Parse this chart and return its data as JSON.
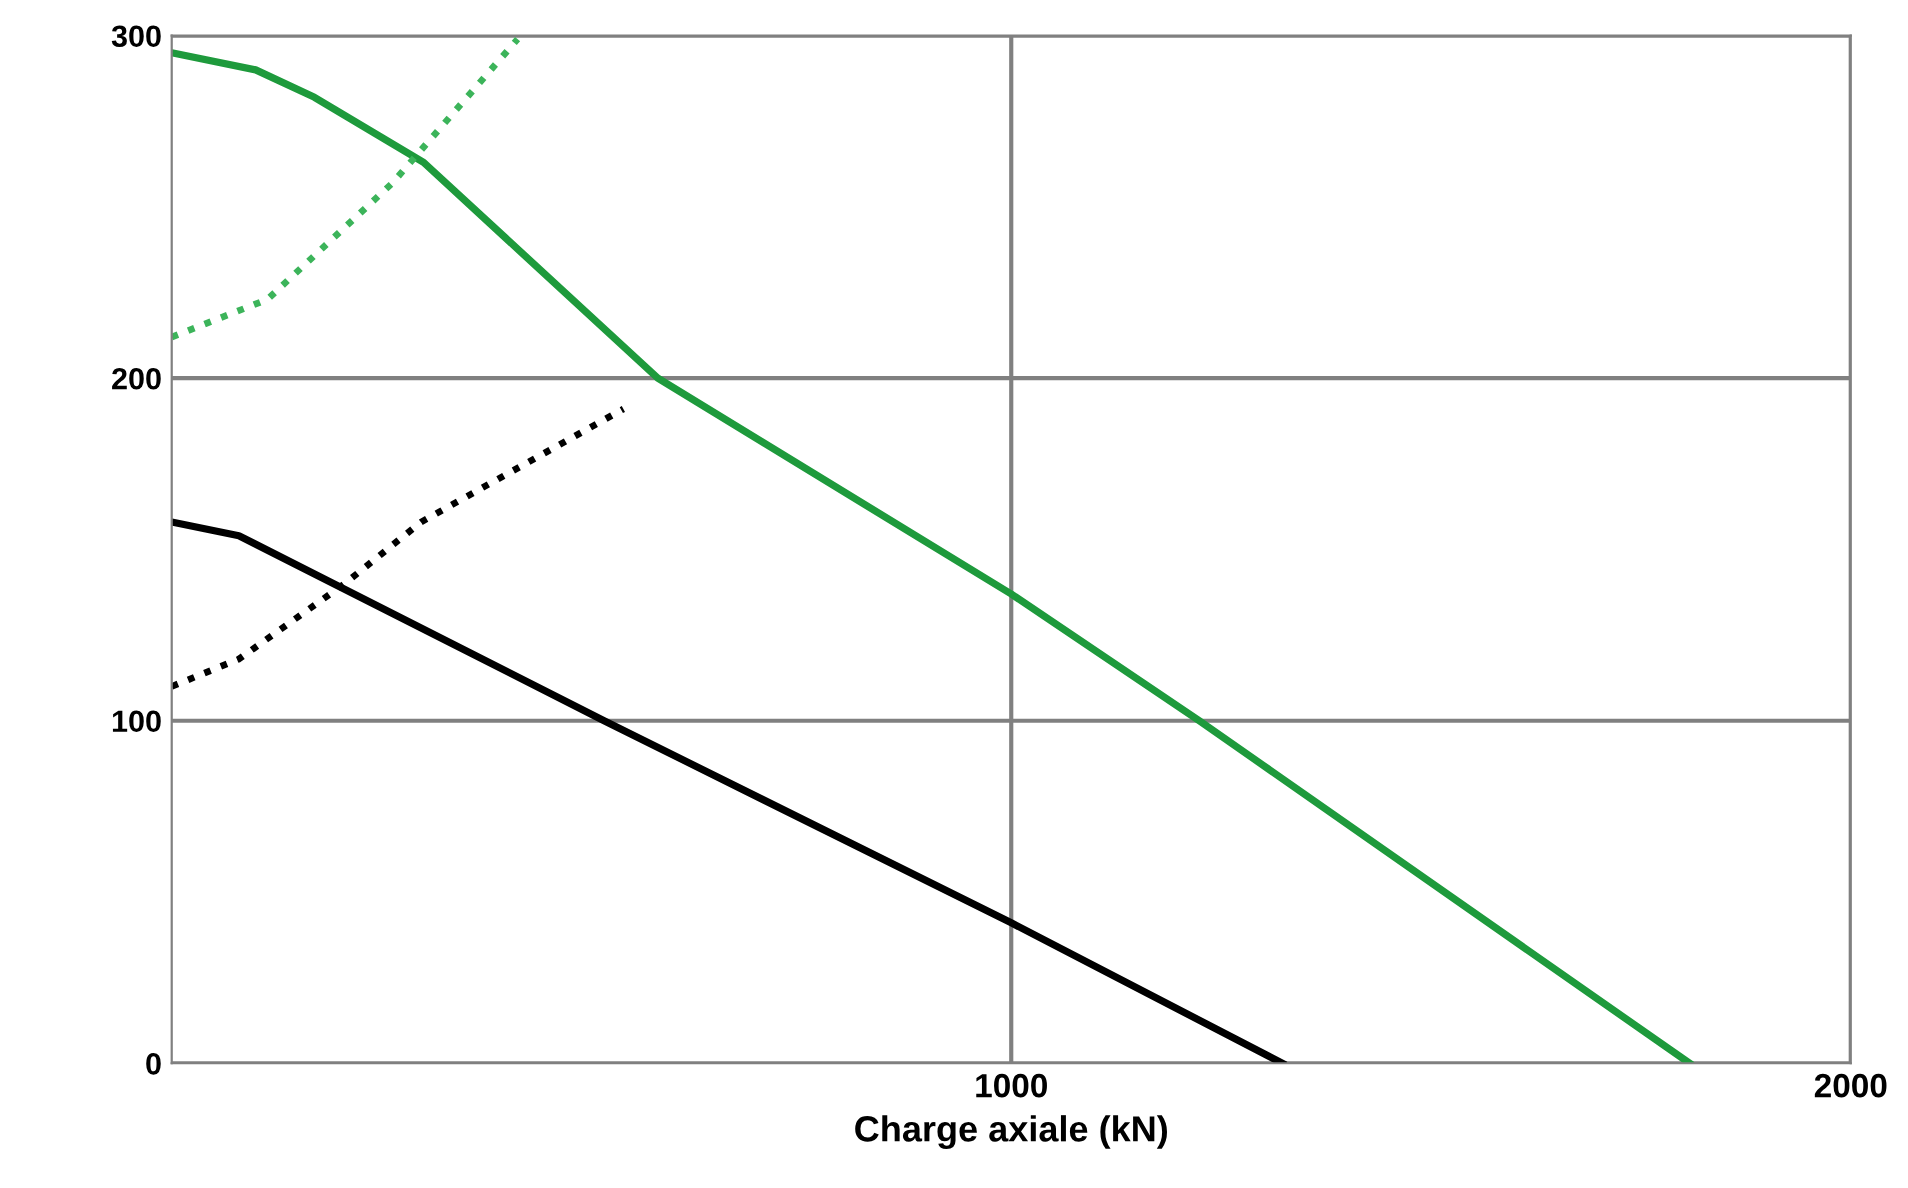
{
  "chart_data": {
    "type": "line",
    "xlabel": "Charge axiale (kN)",
    "xlim": [
      0,
      2000
    ],
    "ylim": [
      0,
      300
    ],
    "xticks": [
      1000,
      2000
    ],
    "yticks": [
      0,
      100,
      200,
      300
    ],
    "grid": true,
    "legend": false,
    "marker": "none",
    "series": [
      {
        "color": "#1e9a3c",
        "line_style": "solid",
        "x": [
          0,
          100,
          170,
          300,
          579,
          1000,
          1224,
          1808
        ],
        "values": [
          295,
          290,
          282,
          263,
          200,
          137,
          100,
          0
        ]
      },
      {
        "color": "#000000",
        "line_style": "solid",
        "x": [
          0,
          80,
          515,
          1000,
          1323
        ],
        "values": [
          158,
          154,
          100,
          41,
          0
        ]
      },
      {
        "color": "#3cb45a",
        "line_style": "dotted",
        "x": [
          0,
          114,
          263,
          412
        ],
        "values": [
          212,
          223,
          257,
          299
        ]
      },
      {
        "color": "#000000",
        "line_style": "dotted",
        "x": [
          0,
          80,
          206,
          297,
          538
        ],
        "values": [
          110,
          118,
          140,
          158,
          191
        ]
      }
    ]
  }
}
